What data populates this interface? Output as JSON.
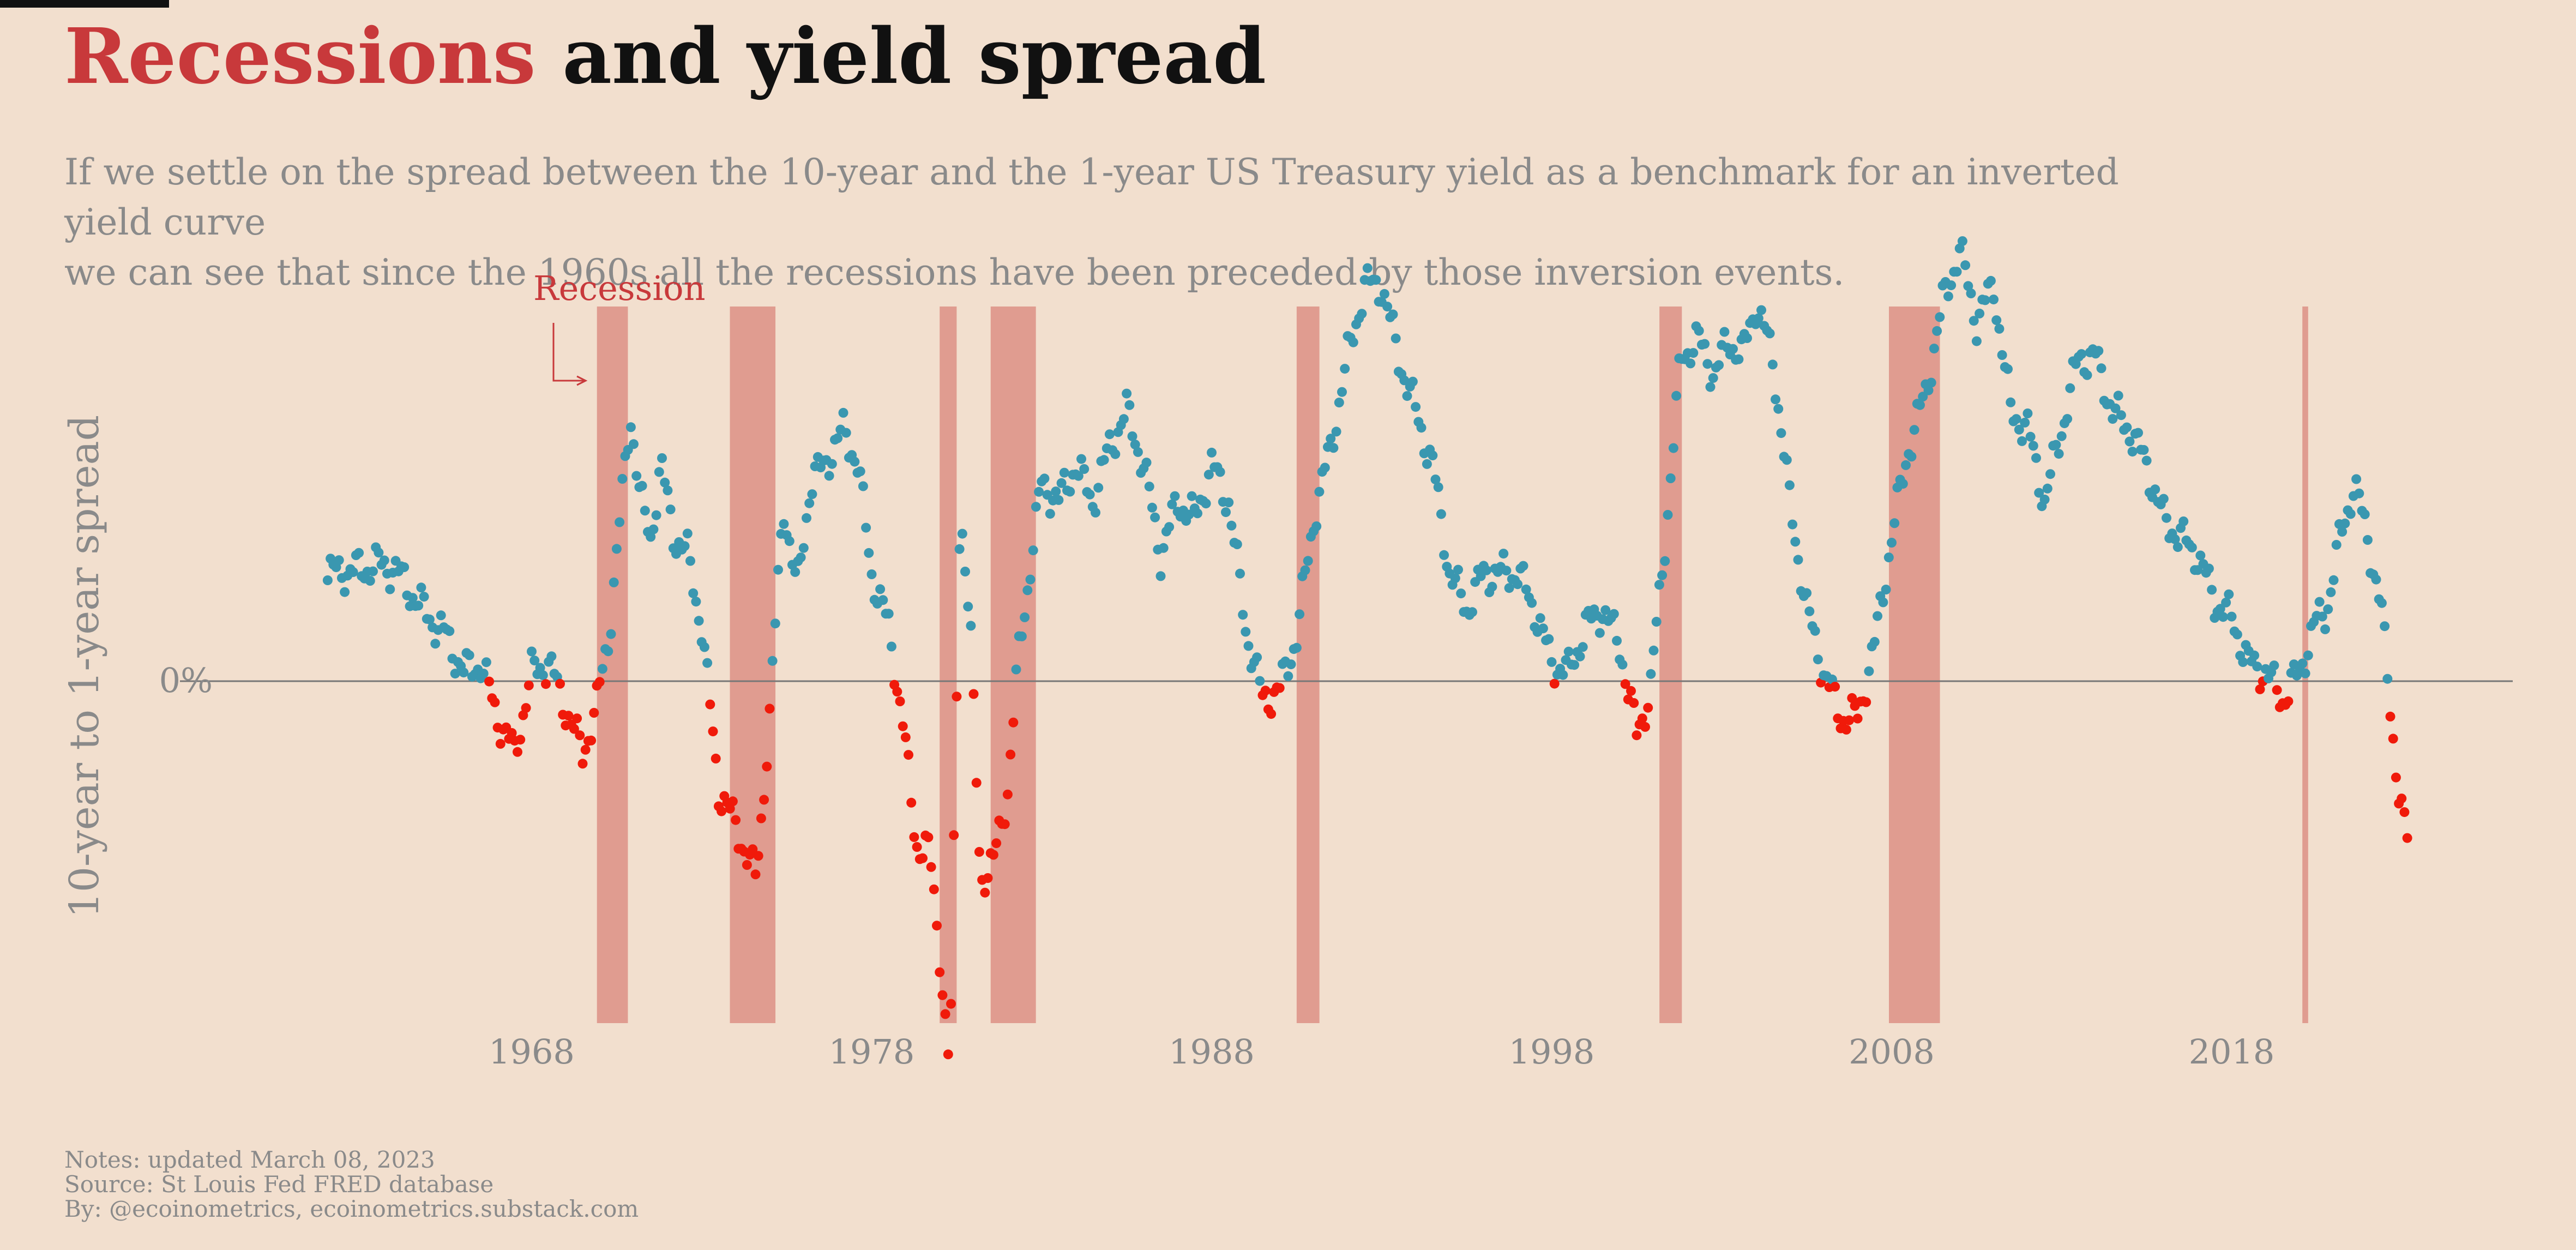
{
  "header": {
    "title_highlight": "Recessions",
    "title_rest": " and yield spread",
    "subtitle_line1": "If we settle on the spread between the 10-year and the 1-year US Treasury yield as a benchmark for an inverted yield curve",
    "subtitle_line2": "we can see that since the 1960s all the recessions have been preceded by those inversion events."
  },
  "notes": {
    "line1": "Notes: updated March 08, 2023",
    "line2": "Source: St Louis Fed FRED database",
    "line3": "By: @ecoinometrics, ecoinometrics.substack.com"
  },
  "colors": {
    "positive": "#3a97b0",
    "negative": "#f01a0a",
    "recession": "#e09c90",
    "annotation": "#c8393b",
    "axis": "#8a8a8a",
    "zero_line": "#777777"
  },
  "chart_data": {
    "type": "scatter",
    "title": "Recessions and yield spread",
    "ylabel": "10-year to 1-year spread",
    "y_tick_label": "0%",
    "x_ticks": [
      1968,
      1978,
      1988,
      1998,
      2008,
      2018
    ],
    "xlim": [
      1959.5,
      2025.8
    ],
    "ylim": [
      -2.5,
      2.7
    ],
    "recession_label": "Recession",
    "recessions": [
      [
        1969.92,
        1970.83
      ],
      [
        1973.83,
        1975.17
      ],
      [
        1980.0,
        1980.5
      ],
      [
        1981.5,
        1982.83
      ],
      [
        1990.5,
        1991.17
      ],
      [
        2001.17,
        2001.83
      ],
      [
        2007.92,
        2009.42
      ],
      [
        2020.08,
        2020.25
      ]
    ],
    "anchors": [
      [
        1962.0,
        0.6
      ],
      [
        1963.0,
        0.62
      ],
      [
        1963.5,
        0.65
      ],
      [
        1964.0,
        0.62
      ],
      [
        1964.5,
        0.48
      ],
      [
        1965.0,
        0.35
      ],
      [
        1965.5,
        0.25
      ],
      [
        1966.0,
        0.05
      ],
      [
        1966.5,
        0.1
      ],
      [
        1967.0,
        -0.2
      ],
      [
        1967.5,
        -0.4
      ],
      [
        1968.0,
        0.05
      ],
      [
        1968.5,
        0.1
      ],
      [
        1969.0,
        -0.15
      ],
      [
        1969.5,
        -0.4
      ],
      [
        1969.9,
        -0.15
      ],
      [
        1970.3,
        0.3
      ],
      [
        1970.6,
        0.9
      ],
      [
        1970.9,
        1.5
      ],
      [
        1971.2,
        1.0
      ],
      [
        1971.5,
        0.8
      ],
      [
        1971.8,
        1.2
      ],
      [
        1972.2,
        0.8
      ],
      [
        1972.6,
        0.7
      ],
      [
        1973.0,
        0.3
      ],
      [
        1973.5,
        -0.6
      ],
      [
        1974.0,
        -0.8
      ],
      [
        1974.6,
        -1.1
      ],
      [
        1975.0,
        -0.2
      ],
      [
        1975.4,
        1.0
      ],
      [
        1975.8,
        0.5
      ],
      [
        1976.2,
        1.1
      ],
      [
        1976.6,
        1.2
      ],
      [
        1977.2,
        1.4
      ],
      [
        1977.6,
        1.2
      ],
      [
        1978.0,
        0.6
      ],
      [
        1978.5,
        0.3
      ],
      [
        1978.9,
        -0.2
      ],
      [
        1979.3,
        -0.9
      ],
      [
        1979.7,
        -0.95
      ],
      [
        1980.0,
        -1.5
      ],
      [
        1980.3,
        -2.2
      ],
      [
        1980.6,
        1.0
      ],
      [
        1980.9,
        0.3
      ],
      [
        1981.2,
        -1.1
      ],
      [
        1981.6,
        -1.0
      ],
      [
        1982.0,
        -0.6
      ],
      [
        1982.3,
        0.1
      ],
      [
        1982.7,
        0.7
      ],
      [
        1983.0,
        1.1
      ],
      [
        1983.5,
        1.0
      ],
      [
        1984.0,
        1.2
      ],
      [
        1984.5,
        1.0
      ],
      [
        1985.0,
        1.3
      ],
      [
        1985.5,
        1.5
      ],
      [
        1986.0,
        1.2
      ],
      [
        1986.5,
        0.7
      ],
      [
        1987.0,
        1.0
      ],
      [
        1987.5,
        0.9
      ],
      [
        1988.0,
        1.2
      ],
      [
        1988.5,
        1.0
      ],
      [
        1989.0,
        0.3
      ],
      [
        1989.5,
        -0.1
      ],
      [
        1990.0,
        -0.05
      ],
      [
        1990.5,
        0.25
      ],
      [
        1991.0,
        0.9
      ],
      [
        1991.5,
        1.3
      ],
      [
        1992.0,
        1.8
      ],
      [
        1992.5,
        2.2
      ],
      [
        1993.0,
        2.2
      ],
      [
        1993.5,
        1.8
      ],
      [
        1994.0,
        1.5
      ],
      [
        1994.5,
        1.2
      ],
      [
        1995.0,
        0.6
      ],
      [
        1995.5,
        0.4
      ],
      [
        1996.0,
        0.6
      ],
      [
        1996.5,
        0.6
      ],
      [
        1997.0,
        0.6
      ],
      [
        1997.5,
        0.4
      ],
      [
        1998.0,
        0.1
      ],
      [
        1998.5,
        0.05
      ],
      [
        1999.0,
        0.3
      ],
      [
        1999.5,
        0.4
      ],
      [
        2000.0,
        0.2
      ],
      [
        2000.5,
        -0.3
      ],
      [
        2000.9,
        -0.05
      ],
      [
        2001.3,
        0.7
      ],
      [
        2001.8,
        1.8
      ],
      [
        2002.3,
        1.9
      ],
      [
        2002.8,
        1.7
      ],
      [
        2003.2,
        1.9
      ],
      [
        2003.6,
        1.8
      ],
      [
        2004.0,
        2.1
      ],
      [
        2004.5,
        1.8
      ],
      [
        2005.0,
        1.0
      ],
      [
        2005.5,
        0.4
      ],
      [
        2006.0,
        0.05
      ],
      [
        2006.5,
        -0.2
      ],
      [
        2007.0,
        -0.2
      ],
      [
        2007.5,
        0.2
      ],
      [
        2008.0,
        0.8
      ],
      [
        2008.5,
        1.3
      ],
      [
        2009.0,
        1.6
      ],
      [
        2009.5,
        2.1
      ],
      [
        2010.0,
        2.4
      ],
      [
        2010.5,
        2.0
      ],
      [
        2011.0,
        2.2
      ],
      [
        2011.5,
        1.5
      ],
      [
        2012.0,
        1.4
      ],
      [
        2012.5,
        1.0
      ],
      [
        2013.0,
        1.4
      ],
      [
        2013.5,
        1.8
      ],
      [
        2014.0,
        1.8
      ],
      [
        2014.5,
        1.5
      ],
      [
        2015.0,
        1.4
      ],
      [
        2015.5,
        1.2
      ],
      [
        2016.0,
        0.9
      ],
      [
        2016.5,
        0.8
      ],
      [
        2017.0,
        0.7
      ],
      [
        2017.5,
        0.45
      ],
      [
        2018.0,
        0.35
      ],
      [
        2018.5,
        0.1
      ],
      [
        2019.0,
        0.05
      ],
      [
        2019.5,
        -0.1
      ],
      [
        2020.0,
        0.05
      ],
      [
        2020.4,
        0.3
      ],
      [
        2020.8,
        0.4
      ],
      [
        2021.2,
        0.8
      ],
      [
        2021.6,
        1.1
      ],
      [
        2022.0,
        0.8
      ],
      [
        2022.4,
        0.4
      ],
      [
        2022.7,
        -0.2
      ],
      [
        2022.95,
        -0.7
      ],
      [
        2023.2,
        -0.9
      ]
    ]
  }
}
